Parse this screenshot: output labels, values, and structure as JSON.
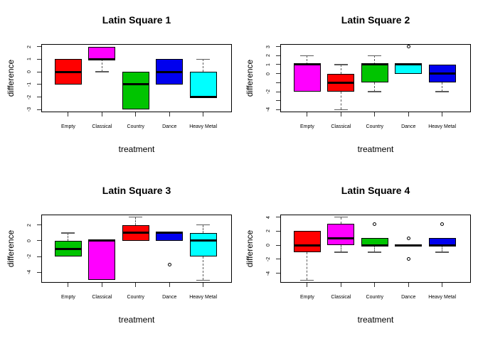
{
  "chart_data": [
    {
      "type": "boxplot",
      "title": "Latin Square 1",
      "xlabel": "treatment",
      "ylabel": "difference",
      "categories": [
        "Empty",
        "Classical",
        "Country",
        "Dance",
        "Heavy Metal"
      ],
      "ylim": [
        -3.2,
        2.2
      ],
      "yticks": [
        {
          "v": -3,
          "label": "-3"
        },
        {
          "v": -2,
          "label": "-2"
        },
        {
          "v": -1,
          "label": "-1"
        },
        {
          "v": 0,
          "label": "0"
        },
        {
          "v": 1,
          "label": "1"
        },
        {
          "v": 2,
          "label": "2"
        }
      ],
      "boxes": [
        {
          "category": "Empty",
          "color": "#FF0000",
          "q1": -1,
          "median": 0,
          "q3": 1,
          "whisker_low": -1,
          "whisker_high": 1,
          "outliers": []
        },
        {
          "category": "Classical",
          "color": "#FF00FF",
          "q1": 1,
          "median": 1,
          "q3": 2,
          "whisker_low": 0,
          "whisker_high": 2,
          "outliers": []
        },
        {
          "category": "Country",
          "color": "#00C400",
          "q1": -3,
          "median": -1,
          "q3": 0,
          "whisker_low": -3,
          "whisker_high": 0,
          "outliers": []
        },
        {
          "category": "Dance",
          "color": "#0000EE",
          "q1": -1,
          "median": 0,
          "q3": 1,
          "whisker_low": -1,
          "whisker_high": 1,
          "outliers": []
        },
        {
          "category": "Heavy Metal",
          "color": "#00FFFF",
          "q1": -2,
          "median": -2,
          "q3": 0,
          "whisker_low": -2,
          "whisker_high": 1,
          "outliers": []
        }
      ]
    },
    {
      "type": "boxplot",
      "title": "Latin Square 2",
      "xlabel": "treatment",
      "ylabel": "difference",
      "categories": [
        "Empty",
        "Classical",
        "Country",
        "Dance",
        "Heavy Metal"
      ],
      "ylim": [
        -4.28,
        3.28
      ],
      "yticks": [
        {
          "v": -4,
          "label": "-4"
        },
        {
          "v": -3,
          "label": ""
        },
        {
          "v": -2,
          "label": "-2"
        },
        {
          "v": -1,
          "label": ""
        },
        {
          "v": 0,
          "label": "0"
        },
        {
          "v": 1,
          "label": "1"
        },
        {
          "v": 2,
          "label": "2"
        },
        {
          "v": 3,
          "label": "3"
        }
      ],
      "boxes": [
        {
          "category": "Empty",
          "color": "#FF00FF",
          "q1": -2,
          "median": 1,
          "q3": 1,
          "whisker_low": -2,
          "whisker_high": 2,
          "outliers": []
        },
        {
          "category": "Classical",
          "color": "#FF0000",
          "q1": -2,
          "median": -1,
          "q3": 0,
          "whisker_low": -4,
          "whisker_high": 1,
          "outliers": []
        },
        {
          "category": "Country",
          "color": "#00C400",
          "q1": -1,
          "median": 1,
          "q3": 1,
          "whisker_low": -2,
          "whisker_high": 2,
          "outliers": []
        },
        {
          "category": "Dance",
          "color": "#00FFFF",
          "q1": 0,
          "median": 1,
          "q3": 1,
          "whisker_low": 0,
          "whisker_high": 1,
          "outliers": [
            3
          ]
        },
        {
          "category": "Heavy Metal",
          "color": "#0000EE",
          "q1": -1,
          "median": 0,
          "q3": 1,
          "whisker_low": -2,
          "whisker_high": 1,
          "outliers": []
        }
      ]
    },
    {
      "type": "boxplot",
      "title": "Latin Square 3",
      "xlabel": "treatment",
      "ylabel": "difference",
      "categories": [
        "Empty",
        "Classical",
        "Country",
        "Dance",
        "Heavy Metal"
      ],
      "ylim": [
        -5.32,
        3.32
      ],
      "yticks": [
        {
          "v": -4,
          "label": "-4"
        },
        {
          "v": -2,
          "label": "-2"
        },
        {
          "v": 0,
          "label": "0"
        },
        {
          "v": 2,
          "label": "2"
        }
      ],
      "boxes": [
        {
          "category": "Empty",
          "color": "#00C400",
          "q1": -2,
          "median": -1,
          "q3": 0,
          "whisker_low": -2,
          "whisker_high": 1,
          "outliers": []
        },
        {
          "category": "Classical",
          "color": "#FF00FF",
          "q1": -5,
          "median": 0,
          "q3": 0,
          "whisker_low": -5,
          "whisker_high": 0,
          "outliers": []
        },
        {
          "category": "Country",
          "color": "#FF0000",
          "q1": 0,
          "median": 1,
          "q3": 2,
          "whisker_low": 0,
          "whisker_high": 3,
          "outliers": []
        },
        {
          "category": "Dance",
          "color": "#0000EE",
          "q1": 0,
          "median": 1,
          "q3": 1,
          "whisker_low": 0,
          "whisker_high": 1,
          "outliers": [
            -3
          ]
        },
        {
          "category": "Heavy Metal",
          "color": "#00FFFF",
          "q1": -2,
          "median": 0,
          "q3": 1,
          "whisker_low": -5,
          "whisker_high": 2,
          "outliers": []
        }
      ]
    },
    {
      "type": "boxplot",
      "title": "Latin Square 4",
      "xlabel": "treatment",
      "ylabel": "difference",
      "categories": [
        "Empty",
        "Classical",
        "Country",
        "Dance",
        "Heavy Metal"
      ],
      "ylim": [
        -5.36,
        4.36
      ],
      "yticks": [
        {
          "v": -4,
          "label": "-4"
        },
        {
          "v": -2,
          "label": "-2"
        },
        {
          "v": 0,
          "label": "0"
        },
        {
          "v": 2,
          "label": "2"
        },
        {
          "v": 4,
          "label": "4"
        }
      ],
      "boxes": [
        {
          "category": "Empty",
          "color": "#FF0000",
          "q1": -1,
          "median": 0,
          "q3": 2,
          "whisker_low": -5,
          "whisker_high": 2,
          "outliers": []
        },
        {
          "category": "Classical",
          "color": "#FF00FF",
          "q1": 0,
          "median": 1,
          "q3": 3,
          "whisker_low": -1,
          "whisker_high": 4,
          "outliers": []
        },
        {
          "category": "Country",
          "color": "#00C400",
          "q1": 0,
          "median": 0,
          "q3": 1,
          "whisker_low": -1,
          "whisker_high": 1,
          "outliers": [
            3
          ]
        },
        {
          "category": "Dance",
          "color": "#00FFFF",
          "q1": 0,
          "median": 0,
          "q3": 0,
          "whisker_low": 0,
          "whisker_high": 0,
          "outliers": [
            1,
            -2
          ]
        },
        {
          "category": "Heavy Metal",
          "color": "#0000EE",
          "q1": 0,
          "median": 0,
          "q3": 1,
          "whisker_low": -1,
          "whisker_high": 1,
          "outliers": [
            3
          ]
        }
      ]
    }
  ]
}
